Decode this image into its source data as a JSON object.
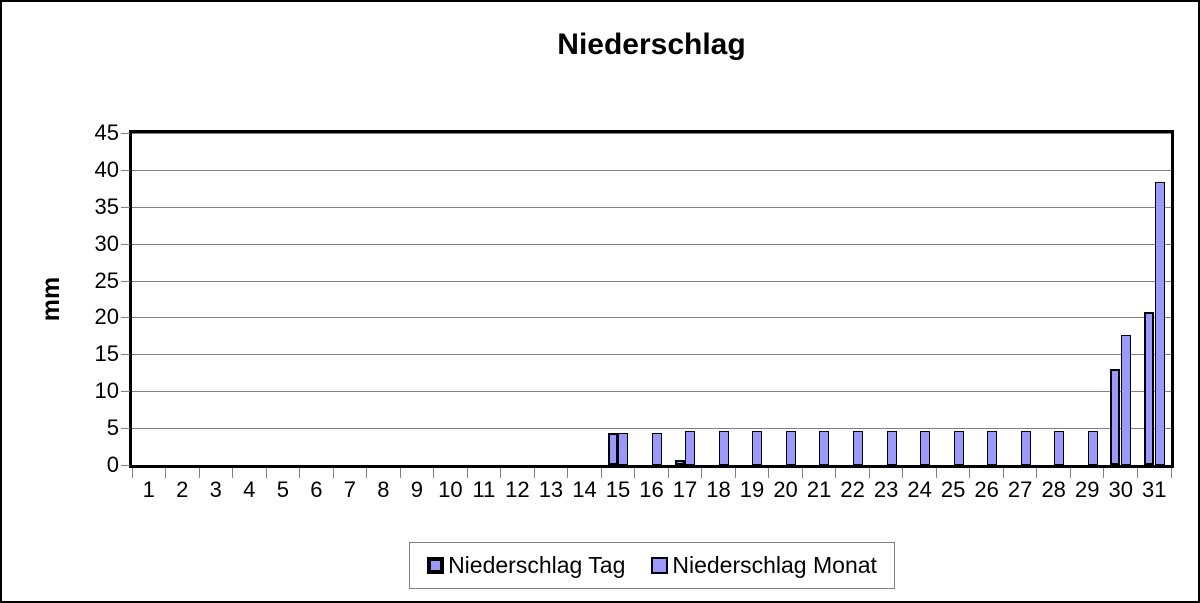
{
  "frame": {
    "background": "#FFFFFF",
    "border_color": "#000000"
  },
  "chart_data": {
    "type": "bar",
    "title": "Niederschlag",
    "ylabel": "mm",
    "xlabel": "",
    "ylim": [
      0,
      45
    ],
    "yticks": [
      0,
      5,
      10,
      15,
      20,
      25,
      30,
      35,
      40,
      45
    ],
    "grid": true,
    "gridline_color": "#808080",
    "tick_color": "#808080",
    "axis_color": "#000000",
    "categories": [
      "1",
      "2",
      "3",
      "4",
      "5",
      "6",
      "7",
      "8",
      "9",
      "10",
      "11",
      "12",
      "13",
      "14",
      "15",
      "16",
      "17",
      "18",
      "19",
      "20",
      "21",
      "22",
      "23",
      "24",
      "25",
      "26",
      "27",
      "28",
      "29",
      "30",
      "31"
    ],
    "series": [
      {
        "name": "Niederschlag Tag",
        "fill": "#9999FF",
        "border": "#000000",
        "values": [
          0,
          0,
          0,
          0,
          0,
          0,
          0,
          0,
          0,
          0,
          0,
          0,
          0,
          0,
          4.4,
          0,
          0.2,
          0,
          0,
          0,
          0,
          0,
          0,
          0,
          0,
          0,
          0,
          0,
          0,
          13.0,
          20.8
        ]
      },
      {
        "name": "Niederschlag Monat",
        "fill": "#9999FF",
        "border": "#000000",
        "values": [
          0,
          0,
          0,
          0,
          0,
          0,
          0,
          0,
          0,
          0,
          0,
          0,
          0,
          0,
          4.4,
          4.4,
          4.6,
          4.6,
          4.6,
          4.6,
          4.6,
          4.6,
          4.6,
          4.6,
          4.6,
          4.6,
          4.6,
          4.6,
          4.6,
          17.6,
          38.4
        ]
      }
    ],
    "legend": {
      "position": "bottom",
      "entries": [
        "Niederschlag Tag",
        "Niederschlag Monat"
      ]
    }
  }
}
